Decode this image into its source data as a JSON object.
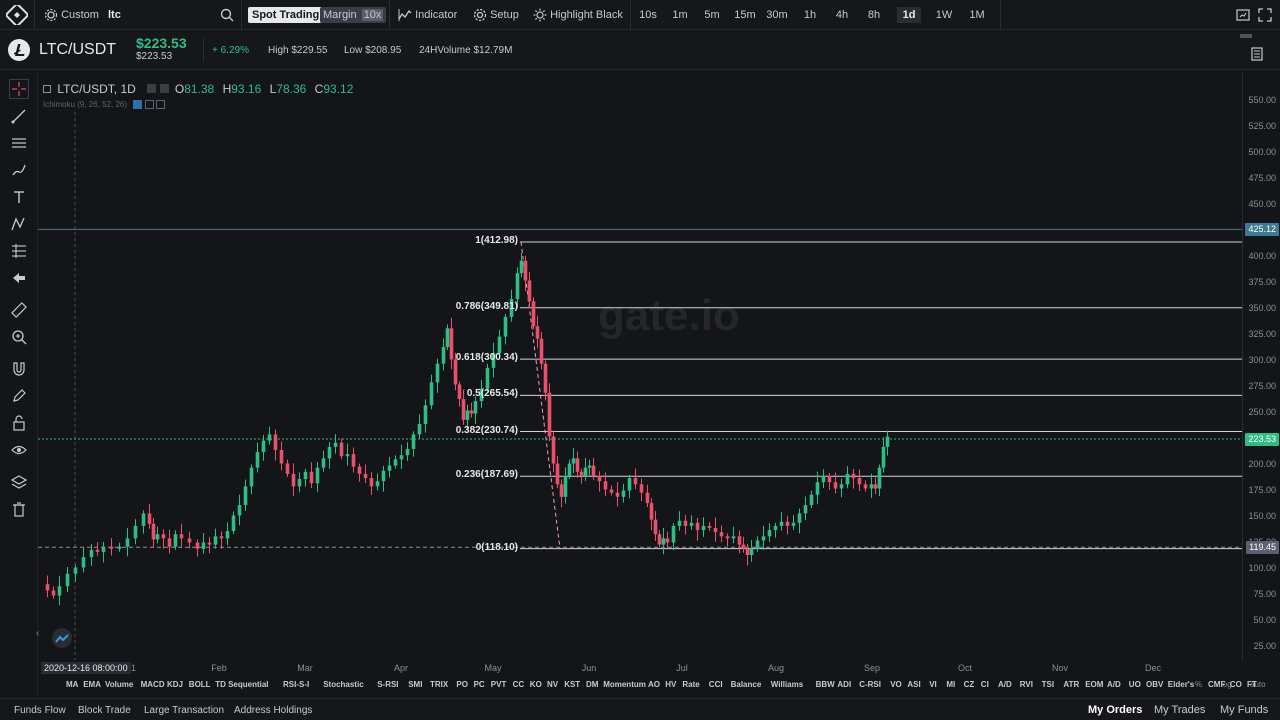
{
  "topbar": {
    "custom_label": "Custom",
    "symbol_search": "ltc",
    "spot_trading": "Spot Trading",
    "margin": "Margin",
    "margin_leverage": "10x",
    "indicator": "Indicator",
    "setup": "Setup",
    "highlight": "Highlight Black",
    "intervals": [
      "10s",
      "1m",
      "5m",
      "15m",
      "30m",
      "1h",
      "4h",
      "8h",
      "1d",
      "1W",
      "1M"
    ],
    "active_interval": "1d"
  },
  "ticker": {
    "pair": "LTC/USDT",
    "price": "$223.53",
    "price_sub": "$223.53",
    "change": "+ 6.29%",
    "high": "High $229.55",
    "low": "Low $208.95",
    "volume": "24HVolume $12.79M"
  },
  "legend": {
    "title": "LTC/USDT, 1D",
    "o_label": "O",
    "o": "81.38",
    "h_label": "H",
    "h": "93.16",
    "l_label": "L",
    "l": "78.36",
    "c_label": "C",
    "c": "93.12",
    "study": "Ichimoku (9, 26, 52, 26)"
  },
  "chart_data": {
    "type": "candlestick",
    "y_ticks": [
      "550.00",
      "525.00",
      "500.00",
      "475.00",
      "450.00",
      "425.00",
      "400.00",
      "375.00",
      "350.00",
      "325.00",
      "300.00",
      "275.00",
      "250.00",
      "225.00",
      "200.00",
      "175.00",
      "150.00",
      "125.00",
      "100.00",
      "75.00",
      "50.00",
      "25.00"
    ],
    "ylim": [
      0,
      575
    ],
    "x_labels": [
      "Feb",
      "Mar",
      "Apr",
      "May",
      "Jun",
      "Jul",
      "Aug",
      "Sep",
      "Oct",
      "Nov",
      "Dec"
    ],
    "crosshair_date": "2020-12-16 08:00:00",
    "crosshair_tick": "1",
    "fib_levels": [
      {
        "label": "1(412.98)",
        "value": 412.98
      },
      {
        "label": "0.786(349.81)",
        "value": 349.81
      },
      {
        "label": "0.618(300.34)",
        "value": 300.34
      },
      {
        "label": "0.5(265.54)",
        "value": 265.54
      },
      {
        "label": "0.382(230.74)",
        "value": 230.74
      },
      {
        "label": "0.236(187.69)",
        "value": 187.69
      },
      {
        "label": "0(118.10)",
        "value": 118.1
      }
    ],
    "horizontal_lines": [
      {
        "label": "425.12",
        "value": 425.12
      },
      {
        "label": "119.45",
        "value": 119.45
      }
    ],
    "last_price": {
      "label": "223.53",
      "value": 223.53
    },
    "watermark": "gate.io",
    "colors": {
      "up": "#2fbd85",
      "down": "#e8506b",
      "background": "#141519"
    }
  },
  "indicators": [
    "MA",
    "EMA",
    "Volume",
    "MACD",
    "KDJ",
    "BOLL",
    "TD Sequential",
    "RSI-S-I",
    "Stochastic",
    "S-RSI",
    "SMI",
    "TRIX",
    "PO",
    "PC",
    "PVT",
    "CC",
    "KO",
    "NV",
    "KST",
    "DM",
    "Momentum",
    "AO",
    "HV",
    "Rate",
    "CCI",
    "Balance",
    "Williams",
    "BBW",
    "ADI",
    "C-RSI",
    "VO",
    "ASI",
    "VI",
    "MI",
    "CZ",
    "CI",
    "A/D",
    "RVI",
    "TSI",
    "ATR",
    "EOM",
    "A/D",
    "UO",
    "OBV",
    "Elder's",
    "CMF",
    "CO",
    "FT"
  ],
  "scale": {
    "percent": "%",
    "log": "log",
    "auto": "auto"
  },
  "bottom": {
    "tabs": [
      "Funds Flow",
      "Block Trade",
      "Large Transaction",
      "Address Holdings"
    ],
    "right_tabs": [
      "My Orders",
      "My Trades",
      "My Funds"
    ]
  }
}
